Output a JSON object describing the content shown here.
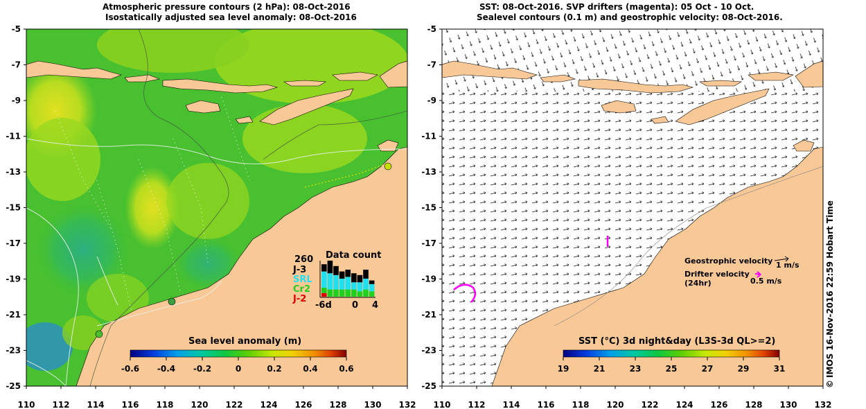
{
  "left_panel": {
    "title_line1": "Atmospheric pressure contours (2 hPa): 08-Oct-2016",
    "title_line2": "Isostatically adjusted sea level anomaly: 08-Oct-2016",
    "colorbar_label": "Sea level anomaly (m)",
    "colorbar_ticks": [
      "-0.6",
      "-0.4",
      "-0.2",
      "0",
      "0.2",
      "0.4",
      "0.6"
    ],
    "colorbar_colors": [
      "#000080",
      "#0050e0",
      "#00b0e0",
      "#00c860",
      "#40c800",
      "#a8e800",
      "#f0f000",
      "#f0b000",
      "#e06000",
      "#900000"
    ],
    "data_count": {
      "title": "Data count",
      "max_label": "260",
      "missions": [
        {
          "name": "J-3",
          "color": "#000000"
        },
        {
          "name": "SRL",
          "color": "#20e0f0"
        },
        {
          "name": "Cr2",
          "color": "#20d020"
        },
        {
          "name": "J-2",
          "color": "#e00000"
        }
      ],
      "x_labels": [
        "-6d",
        "0",
        "4"
      ],
      "bars": [
        {
          "black": 0.2,
          "cyan": 0.45,
          "green": 0.15,
          "red": 0.1
        },
        {
          "black": 0.35,
          "cyan": 0.45,
          "green": 0.2,
          "red": 0
        },
        {
          "black": 0.25,
          "cyan": 0.4,
          "green": 0.2,
          "red": 0
        },
        {
          "black": 0.2,
          "cyan": 0.3,
          "green": 0.2,
          "red": 0
        },
        {
          "black": 0.2,
          "cyan": 0.35,
          "green": 0.2,
          "red": 0
        },
        {
          "black": 0.25,
          "cyan": 0.2,
          "green": 0.2,
          "red": 0
        },
        {
          "black": 0.2,
          "cyan": 0.25,
          "green": 0.15,
          "red": 0
        },
        {
          "black": 0.25,
          "cyan": 0.3,
          "green": 0.2,
          "red": 0
        },
        {
          "black": 0.1,
          "cyan": 0.2,
          "green": 0.15,
          "red": 0
        }
      ]
    }
  },
  "right_panel": {
    "title_line1": "SST: 08-Oct-2016. SVP drifters (magenta): 05 Oct - 10 Oct.",
    "title_line2": "Sealevel contours (0.1 m) and geostrophic velocity: 08-Oct-2016.",
    "colorbar_label": "SST (°C) 3d night&day (L3S-3d QL>=2)",
    "colorbar_ticks": [
      "19",
      "21",
      "23",
      "25",
      "27",
      "29",
      "31"
    ],
    "colorbar_colors": [
      "#000080",
      "#0050e0",
      "#00b0e0",
      "#00c860",
      "#40c800",
      "#a8e800",
      "#f0f000",
      "#f0b000",
      "#e06000",
      "#900000"
    ],
    "legend_geo": "Geostrophic velocity",
    "legend_geo_unit": "1 m/s",
    "legend_drifter_1": "Drifter velocity",
    "legend_drifter_2": "(24hr)",
    "legend_drifter_unit": "0.5 m/s",
    "drifter_color": "#ff00ff"
  },
  "axes": {
    "lon_ticks": [
      "110",
      "112",
      "114",
      "116",
      "118",
      "120",
      "122",
      "124",
      "126",
      "128",
      "130",
      "132"
    ],
    "lat_ticks": [
      "-5",
      "-7",
      "-9",
      "-11",
      "-13",
      "-15",
      "-17",
      "-19",
      "-21",
      "-23",
      "-25"
    ]
  },
  "colors": {
    "land": "#f8c896",
    "ocean_green": "#48c030",
    "ocean_yellowgreen": "#98d820",
    "ocean_yellow": "#d0e020",
    "ocean_blue": "#20b070"
  },
  "credit": "IMOS 16-Nov-2016 22:59 Hobart Time",
  "copyright_symbol": "©"
}
